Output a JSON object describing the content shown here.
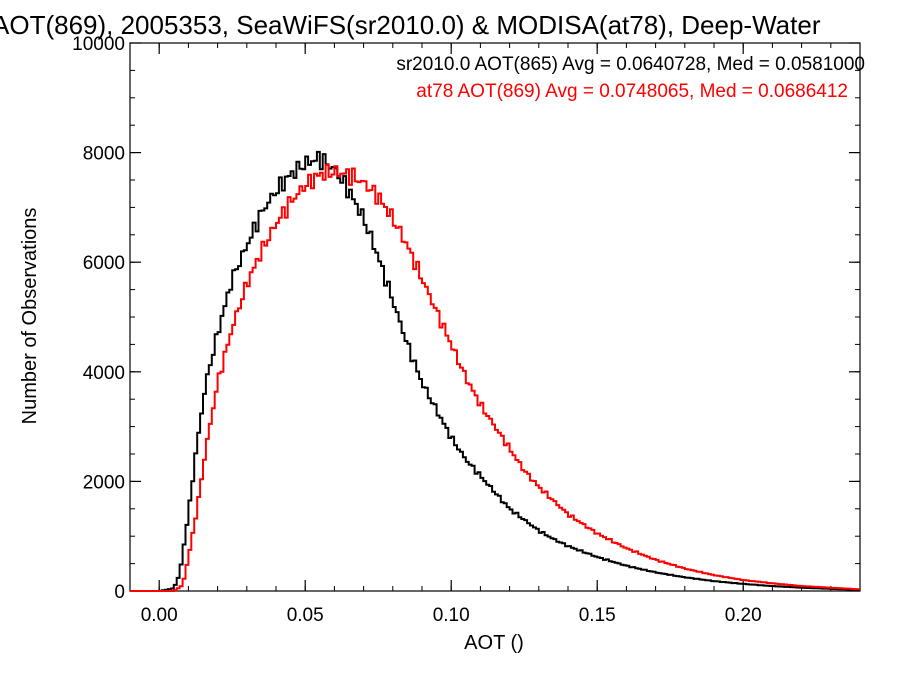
{
  "chart_data": {
    "type": "line",
    "title": "AOT(869), 2005353, SeaWiFS(sr2010.0) & MODISA(at78), Deep-Water",
    "xlabel": "AOT ()",
    "ylabel": "Number of Observations",
    "xlim": [
      -0.01,
      0.24
    ],
    "ylim": [
      0,
      10000
    ],
    "x_ticks": [
      0.0,
      0.05,
      0.1,
      0.15,
      0.2
    ],
    "x_tick_labels": [
      "0.00",
      "0.05",
      "0.10",
      "0.15",
      "0.20"
    ],
    "y_ticks": [
      0,
      2000,
      4000,
      6000,
      8000,
      10000
    ],
    "y_tick_labels": [
      "0",
      "2000",
      "4000",
      "6000",
      "8000",
      "10000"
    ],
    "grid": false,
    "legend": "top-right",
    "colors": {
      "sr2010": "#000000",
      "at78": "#ff0000"
    },
    "series": [
      {
        "name": "sr2010.0",
        "legend": "sr2010.0 AOT(865) Avg = 0.0640728, Med = 0.0581000",
        "color": "#000000",
        "x": [
          -0.01,
          0.0,
          0.005,
          0.007,
          0.01,
          0.013,
          0.016,
          0.02,
          0.025,
          0.03,
          0.035,
          0.04,
          0.045,
          0.05,
          0.055,
          0.06,
          0.065,
          0.07,
          0.075,
          0.08,
          0.085,
          0.09,
          0.095,
          0.1,
          0.105,
          0.11,
          0.115,
          0.12,
          0.125,
          0.13,
          0.135,
          0.14,
          0.15,
          0.16,
          0.17,
          0.18,
          0.19,
          0.2,
          0.21,
          0.22,
          0.23,
          0.24
        ],
        "y": [
          0,
          0,
          50,
          300,
          1400,
          2700,
          3800,
          4700,
          5700,
          6300,
          6900,
          7300,
          7600,
          7800,
          7900,
          7700,
          7300,
          6800,
          6100,
          5300,
          4500,
          3800,
          3300,
          2800,
          2400,
          2100,
          1800,
          1500,
          1300,
          1100,
          950,
          820,
          620,
          460,
          340,
          250,
          180,
          130,
          90,
          60,
          40,
          20
        ]
      },
      {
        "name": "at78",
        "legend": "at78 AOT(869) Avg = 0.0748065, Med = 0.0686412",
        "color": "#ff0000",
        "x": [
          -0.01,
          0.0,
          0.005,
          0.008,
          0.01,
          0.013,
          0.016,
          0.02,
          0.025,
          0.03,
          0.035,
          0.04,
          0.045,
          0.05,
          0.055,
          0.06,
          0.065,
          0.07,
          0.075,
          0.08,
          0.085,
          0.09,
          0.095,
          0.1,
          0.105,
          0.11,
          0.115,
          0.12,
          0.125,
          0.13,
          0.135,
          0.14,
          0.15,
          0.16,
          0.17,
          0.18,
          0.19,
          0.2,
          0.21,
          0.22,
          0.23,
          0.24
        ],
        "y": [
          0,
          0,
          0,
          100,
          600,
          1500,
          2600,
          3800,
          4800,
          5600,
          6200,
          6700,
          7100,
          7400,
          7600,
          7650,
          7600,
          7450,
          7200,
          6800,
          6300,
          5700,
          5100,
          4500,
          3900,
          3400,
          3000,
          2600,
          2200,
          1900,
          1650,
          1400,
          1050,
          780,
          570,
          410,
          290,
          200,
          140,
          90,
          60,
          30
        ]
      }
    ]
  }
}
